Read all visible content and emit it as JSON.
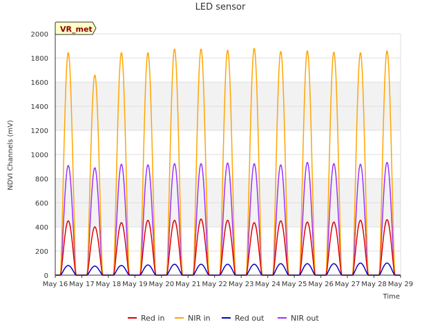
{
  "chart_data": {
    "type": "line",
    "title": "LED sensor",
    "badge": "VR_met",
    "xlabel": "Time",
    "ylabel": "NDVI Channels (mV)",
    "ylim": [
      0,
      2000
    ],
    "xlim": [
      0,
      13
    ],
    "yticks": [
      0,
      200,
      400,
      600,
      800,
      1000,
      1200,
      1400,
      1600,
      1800,
      2000
    ],
    "xticks": [
      "May 16",
      "May 17",
      "May 18",
      "May 19",
      "May 20",
      "May 21",
      "May 22",
      "May 23",
      "May 24",
      "May 25",
      "May 26",
      "May 27",
      "May 28",
      "May 29"
    ],
    "grid": true,
    "day_start": 0.2,
    "day_end": 0.78,
    "series": [
      {
        "name": "Red in",
        "color": "#dd0000",
        "peaks": [
          450,
          400,
          435,
          455,
          455,
          465,
          455,
          435,
          450,
          440,
          440,
          455,
          460
        ]
      },
      {
        "name": "NIR in",
        "color": "#ffa500",
        "peaks": [
          1845,
          1660,
          1845,
          1845,
          1875,
          1875,
          1865,
          1880,
          1855,
          1860,
          1850,
          1845,
          1860
        ]
      },
      {
        "name": "Red out",
        "color": "#0000cc",
        "peaks": [
          80,
          75,
          80,
          85,
          90,
          90,
          90,
          90,
          95,
          95,
          95,
          100,
          100
        ]
      },
      {
        "name": "NIR out",
        "color": "#9b30ff",
        "peaks": [
          910,
          890,
          920,
          915,
          925,
          925,
          930,
          925,
          915,
          935,
          925,
          920,
          935
        ]
      }
    ]
  }
}
